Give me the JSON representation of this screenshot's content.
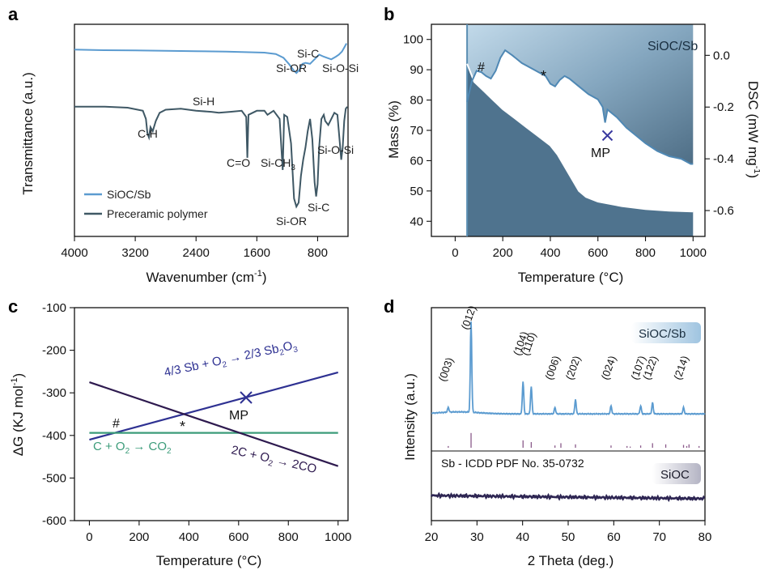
{
  "chart_data": [
    {
      "panel": "a",
      "type": "line",
      "xlabel": "Wavenumber (cm",
      "xlabel_sup": "-1",
      "xlabel_end": ")",
      "ylabel": "Transmittance (a.u.)",
      "xlim": [
        4000,
        400
      ],
      "x_ticks": [
        4000,
        3200,
        2400,
        1600,
        800
      ],
      "legend": [
        "SiOC/Sb",
        "Preceramic polymer"
      ],
      "legend_position": "bottom-left",
      "series": [
        {
          "name": "SiOC/Sb",
          "color": "#5b9bd0",
          "points": [
            [
              4000,
              0.9
            ],
            [
              3600,
              0.897
            ],
            [
              3200,
              0.896
            ],
            [
              2800,
              0.894
            ],
            [
              2400,
              0.892
            ],
            [
              2000,
              0.89
            ],
            [
              1700,
              0.887
            ],
            [
              1500,
              0.885
            ],
            [
              1350,
              0.878
            ],
            [
              1250,
              0.86
            ],
            [
              1180,
              0.83
            ],
            [
              1120,
              0.8
            ],
            [
              1080,
              0.785
            ],
            [
              1040,
              0.8
            ],
            [
              1000,
              0.83
            ],
            [
              960,
              0.835
            ],
            [
              900,
              0.83
            ],
            [
              860,
              0.845
            ],
            [
              820,
              0.86
            ],
            [
              780,
              0.875
            ],
            [
              720,
              0.865
            ],
            [
              680,
              0.86
            ],
            [
              620,
              0.852
            ],
            [
              560,
              0.865
            ],
            [
              520,
              0.875
            ],
            [
              480,
              0.89
            ],
            [
              450,
              0.91
            ],
            [
              420,
              0.93
            ]
          ]
        },
        {
          "name": "Preceramic polymer",
          "color": "#3f5865",
          "points": [
            [
              4000,
              0.62
            ],
            [
              3600,
              0.62
            ],
            [
              3300,
              0.615
            ],
            [
              3100,
              0.6
            ],
            [
              3060,
              0.56
            ],
            [
              3040,
              0.49
            ],
            [
              3020,
              0.47
            ],
            [
              3000,
              0.52
            ],
            [
              2970,
              0.5
            ],
            [
              2930,
              0.55
            ],
            [
              2880,
              0.59
            ],
            [
              2800,
              0.605
            ],
            [
              2600,
              0.61
            ],
            [
              2400,
              0.6
            ],
            [
              2200,
              0.595
            ],
            [
              2100,
              0.59
            ],
            [
              1950,
              0.595
            ],
            [
              1800,
              0.6
            ],
            [
              1740,
              0.57
            ],
            [
              1725,
              0.37
            ],
            [
              1710,
              0.58
            ],
            [
              1600,
              0.6
            ],
            [
              1500,
              0.6
            ],
            [
              1460,
              0.58
            ],
            [
              1420,
              0.59
            ],
            [
              1380,
              0.6
            ],
            [
              1300,
              0.56
            ],
            [
              1260,
              0.31
            ],
            [
              1240,
              0.58
            ],
            [
              1200,
              0.57
            ],
            [
              1150,
              0.44
            ],
            [
              1110,
              0.17
            ],
            [
              1080,
              0.13
            ],
            [
              1050,
              0.15
            ],
            [
              1020,
              0.28
            ],
            [
              990,
              0.36
            ],
            [
              960,
              0.42
            ],
            [
              930,
              0.5
            ],
            [
              900,
              0.56
            ],
            [
              870,
              0.46
            ],
            [
              840,
              0.25
            ],
            [
              820,
              0.18
            ],
            [
              800,
              0.24
            ],
            [
              780,
              0.42
            ],
            [
              750,
              0.56
            ],
            [
              720,
              0.58
            ],
            [
              700,
              0.55
            ],
            [
              660,
              0.53
            ],
            [
              620,
              0.56
            ],
            [
              580,
              0.59
            ],
            [
              540,
              0.58
            ],
            [
              510,
              0.45
            ],
            [
              490,
              0.36
            ],
            [
              470,
              0.42
            ],
            [
              450,
              0.55
            ],
            [
              430,
              0.61
            ],
            [
              410,
              0.62
            ]
          ]
        }
      ],
      "annotations": [
        "C-H",
        "Si-H",
        "C=O",
        "Si-CH",
        "Si-OR",
        "Si-C",
        "Si-O-Si",
        "Si-OR",
        "Si-C",
        "Si-O-Si"
      ],
      "annotation_sub": "3"
    },
    {
      "panel": "b",
      "type": "line",
      "xlabel": "Temperature (°C)",
      "ylabel": "Mass (%)",
      "ylabel2": "DSC (mW mg",
      "ylabel2_sup": "-1",
      "ylabel2_end": ")",
      "xlim": [
        -100,
        1050
      ],
      "ylim": [
        35,
        105
      ],
      "y2lim": [
        -0.7,
        0.12
      ],
      "x_ticks": [
        0,
        200,
        400,
        600,
        800,
        1000
      ],
      "y_ticks": [
        40,
        50,
        60,
        70,
        80,
        90,
        100
      ],
      "y2_ticks": [
        0.0,
        -0.2,
        -0.4,
        -0.6
      ],
      "series_label": "SiOC/Sb",
      "marker_label": "MP",
      "annotations": [
        "#",
        "*"
      ],
      "mass_curve": [
        [
          50,
          92
        ],
        [
          80,
          86
        ],
        [
          120,
          83
        ],
        [
          160,
          80
        ],
        [
          200,
          77
        ],
        [
          250,
          74
        ],
        [
          300,
          71
        ],
        [
          350,
          68
        ],
        [
          400,
          65
        ],
        [
          430,
          62
        ],
        [
          460,
          58
        ],
        [
          490,
          54
        ],
        [
          520,
          50
        ],
        [
          550,
          48
        ],
        [
          600,
          46.5
        ],
        [
          700,
          45
        ],
        [
          800,
          44
        ],
        [
          900,
          43.5
        ],
        [
          1000,
          43.2
        ]
      ],
      "dsc_curve": [
        [
          50,
          -0.18
        ],
        [
          70,
          -0.1
        ],
        [
          90,
          -0.06
        ],
        [
          110,
          -0.065
        ],
        [
          130,
          -0.08
        ],
        [
          150,
          -0.09
        ],
        [
          170,
          -0.06
        ],
        [
          190,
          -0.01
        ],
        [
          210,
          0.02
        ],
        [
          240,
          0.0
        ],
        [
          280,
          -0.03
        ],
        [
          320,
          -0.05
        ],
        [
          350,
          -0.065
        ],
        [
          380,
          -0.08
        ],
        [
          400,
          -0.11
        ],
        [
          420,
          -0.12
        ],
        [
          440,
          -0.095
        ],
        [
          460,
          -0.08
        ],
        [
          480,
          -0.09
        ],
        [
          520,
          -0.12
        ],
        [
          560,
          -0.15
        ],
        [
          600,
          -0.17
        ],
        [
          620,
          -0.2
        ],
        [
          630,
          -0.26
        ],
        [
          640,
          -0.21
        ],
        [
          680,
          -0.24
        ],
        [
          720,
          -0.28
        ],
        [
          760,
          -0.31
        ],
        [
          800,
          -0.34
        ],
        [
          850,
          -0.37
        ],
        [
          900,
          -0.39
        ],
        [
          950,
          -0.4
        ],
        [
          990,
          -0.42
        ],
        [
          1000,
          -0.42
        ]
      ],
      "mp_point": [
        640,
        -0.31
      ]
    },
    {
      "panel": "c",
      "type": "line",
      "xlabel": "Temperature (°C)",
      "ylabel": "ΔG (KJ mol",
      "ylabel_sup": "-1",
      "ylabel_end": ")",
      "xlim": [
        -60,
        1040
      ],
      "ylim": [
        -600,
        -100
      ],
      "x_ticks": [
        0,
        200,
        400,
        600,
        800,
        1000
      ],
      "y_ticks": [
        -100,
        -200,
        -300,
        -400,
        -500,
        -600
      ],
      "series": [
        {
          "name": "Sb",
          "color": "#2e3192",
          "start": [
            0,
            -410
          ],
          "end": [
            1000,
            -252
          ]
        },
        {
          "name": "CO2",
          "color": "#3c9c7a",
          "start": [
            0,
            -394
          ],
          "end": [
            1000,
            -394
          ]
        },
        {
          "name": "CO",
          "color": "#2e1a4f",
          "start": [
            0,
            -275
          ],
          "end": [
            1000,
            -472
          ]
        }
      ],
      "eq_sb": "4/3 Sb + O",
      "eq_sb_mid": " → 2/3 Sb",
      "eq_sb_end": "O",
      "eq_co2": "C + O",
      "eq_co2_mid": " → CO",
      "eq_co": "2C + O",
      "eq_co_mid": " → 2CO",
      "sub2": "2",
      "sub3": "3",
      "marker_label": "MP",
      "mp_point": [
        630,
        -311
      ],
      "annotations": [
        "#",
        "*"
      ]
    },
    {
      "panel": "d",
      "type": "line",
      "xlabel": "2 Theta (deg.)",
      "ylabel": "Intensity (a.u.)",
      "xlim": [
        20,
        80
      ],
      "x_ticks": [
        20,
        30,
        40,
        50,
        60,
        70,
        80
      ],
      "legend": [
        "SiOC/Sb",
        "SiOC"
      ],
      "reference_label": "Sb - ICDD PDF No. 35-0732",
      "peaks": [
        {
          "hkl": "(003)",
          "x": 23.7,
          "h": 6
        },
        {
          "hkl": "(012)",
          "x": 28.7,
          "h": 112
        },
        {
          "hkl": "(104)",
          "x": 40.1,
          "h": 40
        },
        {
          "hkl": "(110)",
          "x": 41.9,
          "h": 34
        },
        {
          "hkl": "(006)",
          "x": 47.1,
          "h": 8
        },
        {
          "hkl": "(202)",
          "x": 51.6,
          "h": 18
        },
        {
          "hkl": "(024)",
          "x": 59.4,
          "h": 10
        },
        {
          "hkl": "(107)",
          "x": 65.9,
          "h": 10
        },
        {
          "hkl": "(122)",
          "x": 68.5,
          "h": 14
        },
        {
          "hkl": "(214)",
          "x": 75.3,
          "h": 8
        }
      ],
      "ref_sticks": [
        [
          23.7,
          6
        ],
        [
          28.7,
          52
        ],
        [
          40.1,
          26
        ],
        [
          41.9,
          20
        ],
        [
          47.1,
          8
        ],
        [
          48.4,
          16
        ],
        [
          51.6,
          12
        ],
        [
          59.4,
          8
        ],
        [
          62.9,
          6
        ],
        [
          63.6,
          4
        ],
        [
          65.9,
          8
        ],
        [
          68.5,
          16
        ],
        [
          71.4,
          12
        ],
        [
          75.3,
          10
        ],
        [
          76.0,
          6
        ],
        [
          76.5,
          12
        ],
        [
          78.7,
          6
        ]
      ]
    }
  ],
  "panel_labels": [
    "a",
    "b",
    "c",
    "d"
  ]
}
